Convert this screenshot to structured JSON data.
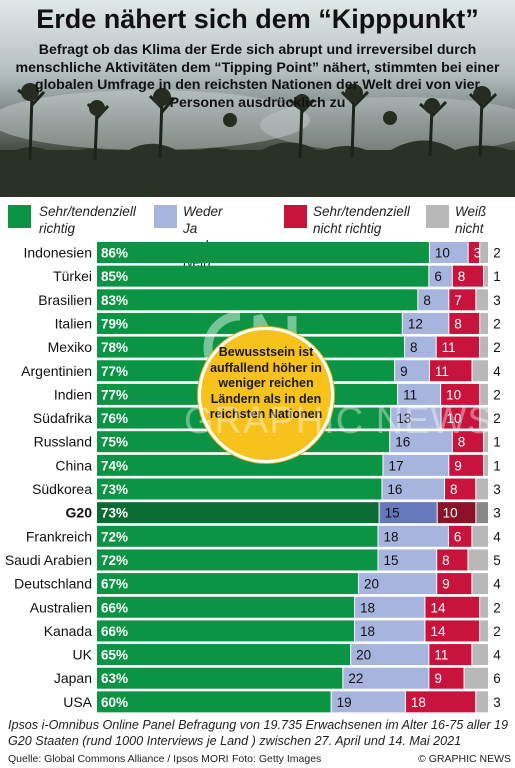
{
  "header": {
    "title": "Erde nähert sich dem “Kipppunkt”",
    "subtitle": "Befragt ob das Klima der Erde sich abrupt und irreversibel durch menschliche Aktivitäten dem “Tipping Point” nähert, stimmten bei einer globalen Umfrage in den reichsten Nationen der Welt drei von vier Personen ausdrücklich zu"
  },
  "legend": [
    {
      "label": "Sehr/tendenziell\nrichtig",
      "color": "#0b9443"
    },
    {
      "label": "Weder Ja noch\nNein",
      "color": "#a6b4de"
    },
    {
      "label": "Sehr/tendenziell\nnicht richtig",
      "color": "#c8143c"
    },
    {
      "label": "Weiß\nnicht",
      "color": "#b8b8b8"
    }
  ],
  "chart_data": {
    "type": "bar",
    "stacked": true,
    "orientation": "horizontal",
    "unit": "%",
    "categories": [
      "Indonesien",
      "Türkei",
      "Brasilien",
      "Italien",
      "Mexiko",
      "Argentinien",
      "Indien",
      "Südafrika",
      "Russland",
      "China",
      "Südkorea",
      "G20",
      "Frankreich",
      "Saudi Arabien",
      "Deutschland",
      "Australien",
      "Kanada",
      "UK",
      "Japan",
      "USA"
    ],
    "highlight_category": "G20",
    "series": [
      {
        "name": "Sehr/tendenziell richtig",
        "color": "#0b9443",
        "highlight_color": "#0a6b33",
        "values": [
          86,
          85,
          83,
          79,
          78,
          77,
          77,
          76,
          75,
          74,
          73,
          73,
          72,
          72,
          67,
          66,
          66,
          65,
          63,
          60
        ]
      },
      {
        "name": "Weder Ja noch Nein",
        "color": "#a6b4de",
        "highlight_color": "#6677bb",
        "values": [
          10,
          6,
          8,
          12,
          8,
          9,
          11,
          13,
          16,
          17,
          16,
          15,
          18,
          15,
          20,
          18,
          18,
          20,
          22,
          19
        ]
      },
      {
        "name": "Sehr/tendenziell nicht richtig",
        "color": "#c8143c",
        "highlight_color": "#8b1226",
        "values": [
          3,
          8,
          7,
          8,
          11,
          11,
          10,
          10,
          8,
          9,
          8,
          10,
          6,
          8,
          9,
          14,
          14,
          11,
          9,
          18
        ]
      },
      {
        "name": "Weiß nicht",
        "color": "#b8b8b8",
        "highlight_color": "#888888",
        "values": [
          2,
          1,
          3,
          2,
          2,
          4,
          2,
          2,
          1,
          1,
          3,
          3,
          4,
          5,
          4,
          2,
          2,
          4,
          6,
          3
        ]
      }
    ]
  },
  "callout": {
    "text": "Bewusstsein ist auffallend höher in weniger reichen Ländern als in den reichsten Nationen"
  },
  "watermark": "GRAPHIC NEWS",
  "notes": "Ipsos i-Omnibus Online Panel Befragung von 19.735 Erwachsenen im Alter 16-75 aller 19 G20 Staaten (rund 1000 Interviews je Land ) zwischen 27. April und 14. Mai 2021",
  "footer": {
    "source": "Quelle: Global Commons Alliance / Ipsos MORI",
    "photo": "Foto: Getty Images",
    "copyright": "© GRAPHIC NEWS"
  }
}
